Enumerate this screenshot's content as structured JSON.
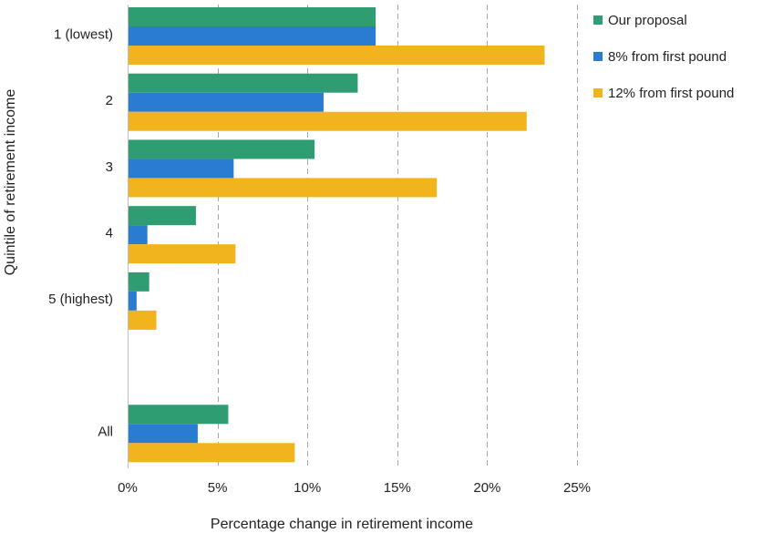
{
  "chart_data": {
    "type": "bar",
    "orientation": "horizontal",
    "categories": [
      "1 (lowest)",
      "2",
      "3",
      "4",
      "5 (highest)",
      "",
      "All"
    ],
    "series": [
      {
        "name": "Our proposal",
        "color": "#2e9e72",
        "values": [
          13.8,
          12.8,
          10.4,
          3.8,
          1.2,
          null,
          5.6
        ]
      },
      {
        "name": "8% from first pound",
        "color": "#2a7bd2",
        "values": [
          13.8,
          10.9,
          5.9,
          1.1,
          0.5,
          null,
          3.9
        ]
      },
      {
        "name": "12% from first pound",
        "color": "#f2b41c",
        "values": [
          23.2,
          22.2,
          17.2,
          6.0,
          1.6,
          null,
          9.3
        ]
      }
    ],
    "xlabel": "Percentage change in retirement income",
    "ylabel": "Quintile of retirement income",
    "xlim": [
      0,
      25
    ],
    "xticks": [
      0,
      5,
      10,
      15,
      20,
      25
    ],
    "x_tick_suffix": "%",
    "grid": "vertical-dashed",
    "legend": "top-right"
  }
}
